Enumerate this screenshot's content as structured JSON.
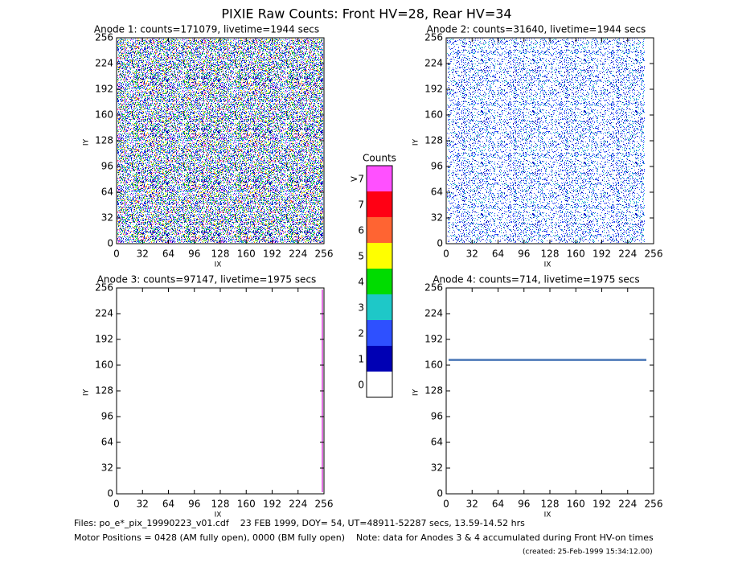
{
  "title": "PIXIE Raw Counts:  Front HV=28, Rear HV=34",
  "chart_data": [
    {
      "type": "heatmap",
      "title": "Anode 1: counts=171079, livetime=1944 secs",
      "xlabel": "IX",
      "ylabel": "IY",
      "xlim": [
        0,
        256
      ],
      "ylim": [
        0,
        256
      ],
      "xticks": [
        0,
        32,
        64,
        96,
        128,
        160,
        192,
        224,
        256
      ],
      "yticks": [
        0,
        32,
        64,
        96,
        128,
        160,
        192,
        224,
        256
      ]
    },
    {
      "type": "heatmap",
      "title": "Anode 2: counts=31640, livetime=1944 secs",
      "xlabel": "IX",
      "ylabel": "IY",
      "xlim": [
        0,
        256
      ],
      "ylim": [
        0,
        256
      ],
      "xticks": [
        0,
        32,
        64,
        96,
        128,
        160,
        192,
        224,
        256
      ],
      "yticks": [
        0,
        32,
        64,
        96,
        128,
        160,
        192,
        224,
        256
      ]
    },
    {
      "type": "heatmap",
      "title": "Anode 3: counts=97147, livetime=1975 secs",
      "xlabel": "IX",
      "ylabel": "IY",
      "xlim": [
        0,
        256
      ],
      "ylim": [
        0,
        256
      ],
      "xticks": [
        0,
        32,
        64,
        96,
        128,
        160,
        192,
        224,
        256
      ],
      "yticks": [
        0,
        32,
        64,
        96,
        128,
        160,
        192,
        224,
        256
      ]
    },
    {
      "type": "heatmap",
      "title": "Anode 4: counts=714, livetime=1975 secs",
      "xlabel": "IX",
      "ylabel": "IY",
      "xlim": [
        0,
        256
      ],
      "ylim": [
        0,
        256
      ],
      "xticks": [
        0,
        32,
        64,
        96,
        128,
        160,
        192,
        224,
        256
      ],
      "yticks": [
        0,
        32,
        64,
        96,
        128,
        160,
        192,
        224,
        256
      ]
    }
  ],
  "colorbar": {
    "title": "Counts",
    "labels": [
      "0",
      "1",
      "2",
      "3",
      "4",
      "5",
      "6",
      "7",
      ">7"
    ],
    "colors": [
      "#ffffff",
      "#0000b4",
      "#2e50ff",
      "#1ec8c8",
      "#00dc00",
      "#ffff00",
      "#ff6432",
      "#ff0014",
      "#ff50ff"
    ]
  },
  "footer": [
    "Files: po_e*_pix_19990223_v01.cdf    23 FEB 1999, DOY= 54, UT=48911-52287 secs, 13.59-14.52 hrs",
    "Motor Positions = 0428 (AM fully open), 0000 (BM fully open)    Note: data for Anodes 3 & 4 accumulated during Front HV-on times",
    "(created: 25-Feb-1999 15:34:12.00)"
  ]
}
